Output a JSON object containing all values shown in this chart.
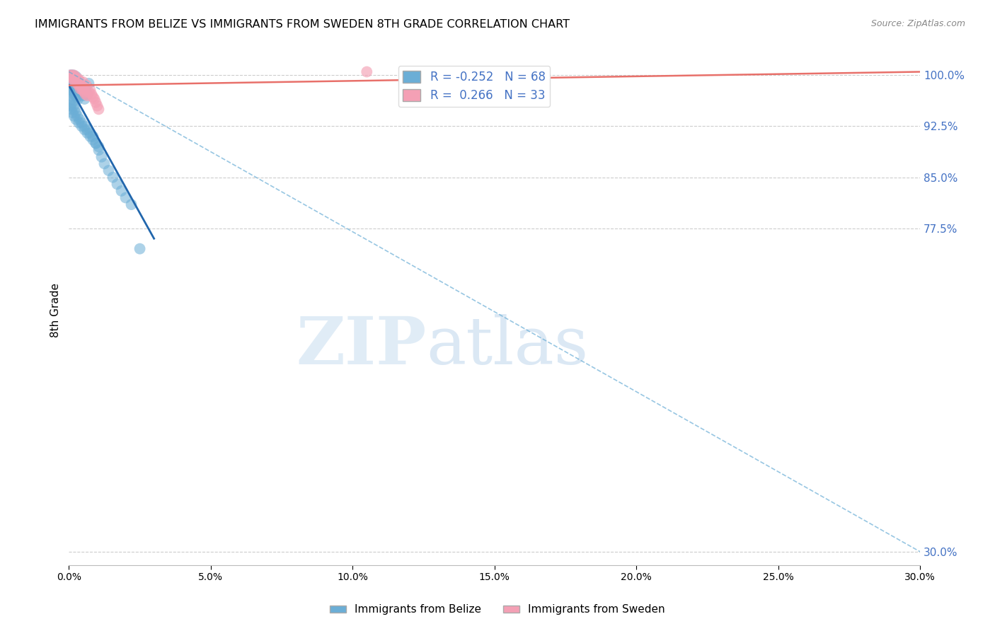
{
  "title": "IMMIGRANTS FROM BELIZE VS IMMIGRANTS FROM SWEDEN 8TH GRADE CORRELATION CHART",
  "source": "Source: ZipAtlas.com",
  "ylabel": "8th Grade",
  "y_ticks": [
    30.0,
    77.5,
    85.0,
    92.5,
    100.0
  ],
  "xlim": [
    0.0,
    30.0
  ],
  "ylim": [
    28.0,
    103.0
  ],
  "belize_R": -0.252,
  "belize_N": 68,
  "sweden_R": 0.266,
  "sweden_N": 33,
  "belize_color": "#6baed6",
  "sweden_color": "#f4a0b5",
  "belize_line_color": "#2166ac",
  "sweden_line_color": "#e8706a",
  "belize_scatter_x": [
    0.05,
    0.05,
    0.1,
    0.1,
    0.15,
    0.15,
    0.2,
    0.2,
    0.25,
    0.25,
    0.3,
    0.3,
    0.35,
    0.4,
    0.45,
    0.5,
    0.55,
    0.6,
    0.65,
    0.7,
    0.05,
    0.05,
    0.08,
    0.08,
    0.12,
    0.12,
    0.18,
    0.22,
    0.28,
    0.32,
    0.05,
    0.07,
    0.1,
    0.13,
    0.17,
    0.2,
    0.25,
    0.3,
    0.38,
    0.45,
    0.55,
    0.65,
    0.75,
    0.85,
    0.95,
    1.05,
    1.15,
    1.25,
    1.4,
    1.55,
    1.7,
    1.85,
    2.0,
    2.2,
    2.5,
    0.05,
    0.08,
    0.12,
    0.18,
    0.25,
    0.35,
    0.45,
    0.55,
    0.65,
    0.75,
    0.85,
    0.95,
    1.05
  ],
  "belize_scatter_y": [
    100.0,
    99.5,
    100.0,
    99.2,
    100.0,
    99.0,
    99.5,
    98.8,
    99.8,
    98.5,
    99.0,
    98.2,
    98.5,
    98.0,
    97.5,
    97.0,
    96.5,
    97.8,
    97.2,
    98.8,
    99.2,
    98.5,
    98.8,
    98.2,
    98.5,
    97.8,
    97.5,
    97.0,
    96.8,
    96.5,
    97.5,
    97.0,
    96.5,
    96.0,
    95.5,
    95.0,
    94.5,
    94.0,
    93.5,
    93.0,
    92.5,
    92.0,
    91.5,
    91.0,
    90.0,
    89.0,
    88.0,
    87.0,
    86.0,
    85.0,
    84.0,
    83.0,
    82.0,
    81.0,
    74.5,
    95.5,
    95.0,
    94.5,
    94.0,
    93.5,
    93.0,
    92.5,
    92.0,
    91.5,
    91.0,
    90.5,
    90.0,
    89.5
  ],
  "sweden_scatter_x": [
    0.05,
    0.08,
    0.1,
    0.12,
    0.15,
    0.18,
    0.2,
    0.22,
    0.25,
    0.28,
    0.3,
    0.32,
    0.35,
    0.38,
    0.4,
    0.42,
    0.45,
    0.48,
    0.5,
    0.52,
    0.55,
    0.58,
    0.62,
    0.65,
    0.7,
    0.75,
    0.8,
    0.85,
    0.9,
    0.95,
    1.0,
    1.05,
    10.5
  ],
  "sweden_scatter_y": [
    100.0,
    99.5,
    100.0,
    99.8,
    99.5,
    100.0,
    99.2,
    99.8,
    99.5,
    98.8,
    99.0,
    99.5,
    98.5,
    99.2,
    98.0,
    98.5,
    98.2,
    97.8,
    99.0,
    98.0,
    97.5,
    97.2,
    98.5,
    97.0,
    97.5,
    97.8,
    97.2,
    96.8,
    96.5,
    96.0,
    95.5,
    95.0,
    100.5
  ],
  "belize_line_x0": 0.0,
  "belize_line_y0": 98.5,
  "belize_line_x1": 3.0,
  "belize_line_y1": 76.0,
  "belize_dash_x0": 0.0,
  "belize_dash_y0": 100.5,
  "belize_dash_x1": 30.0,
  "belize_dash_y1": 30.0,
  "sweden_line_x0": 0.0,
  "sweden_line_y0": 98.5,
  "sweden_line_x1": 30.0,
  "sweden_line_y1": 100.5,
  "watermark_zip": "ZIP",
  "watermark_atlas": "atlas",
  "legend_belize_label": "Immigrants from Belize",
  "legend_sweden_label": "Immigrants from Sweden"
}
